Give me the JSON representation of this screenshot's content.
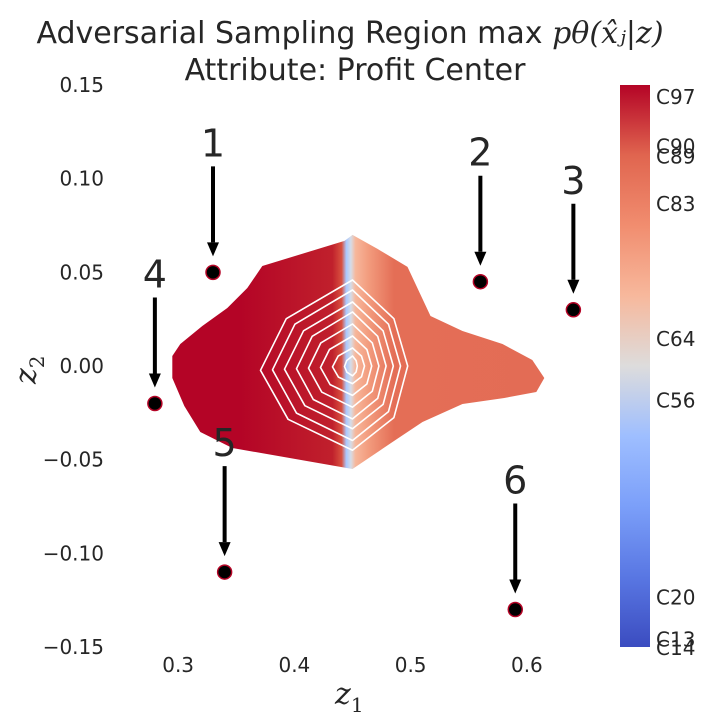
{
  "chart_data": {
    "type": "contour",
    "title_line1_text": "Adversarial Sampling Region max ",
    "title_math": "pθ(x̂ⱼ|z)",
    "title_line2": "Attribute: Profit Center",
    "xlabel": "z",
    "xlabel_sub": "1",
    "ylabel": "z",
    "ylabel_sub": "2",
    "xlim": [
      0.25,
      0.65
    ],
    "ylim": [
      -0.15,
      0.15
    ],
    "x_ticks": [
      0.3,
      0.4,
      0.5,
      0.6
    ],
    "x_tick_labels": [
      "0.3",
      "0.4",
      "0.5",
      "0.6"
    ],
    "y_ticks": [
      0.15,
      0.1,
      0.05,
      0.0,
      -0.05,
      -0.1,
      -0.15
    ],
    "y_tick_labels": [
      "0.15",
      "0.10",
      "0.05",
      "0.00",
      "−0.05",
      "−0.10",
      "−0.15"
    ],
    "points": [
      {
        "label": "1",
        "x": 0.33,
        "y": 0.05
      },
      {
        "label": "2",
        "x": 0.56,
        "y": 0.045
      },
      {
        "label": "3",
        "x": 0.64,
        "y": 0.03
      },
      {
        "label": "4",
        "x": 0.28,
        "y": -0.02
      },
      {
        "label": "5",
        "x": 0.34,
        "y": -0.11
      },
      {
        "label": "6",
        "x": 0.59,
        "y": -0.13
      }
    ],
    "region": {
      "x_range": [
        0.295,
        0.615
      ],
      "y_range": [
        -0.055,
        0.07
      ],
      "center": [
        0.45,
        0.0
      ],
      "colors": {
        "left": "#b40426",
        "right": "#e46e56",
        "stripe_blue": "#aac7fd",
        "stripe_light": "#f7b79b"
      }
    },
    "colorbar": {
      "labels": [
        "C97",
        "C90",
        "C89",
        "C83",
        "C64",
        "C56",
        "C20",
        "C13",
        "C14"
      ],
      "positions": [
        0.02,
        0.108,
        0.125,
        0.21,
        0.45,
        0.56,
        0.91,
        0.985,
        1.0
      ],
      "colormap": "coolwarm"
    }
  }
}
